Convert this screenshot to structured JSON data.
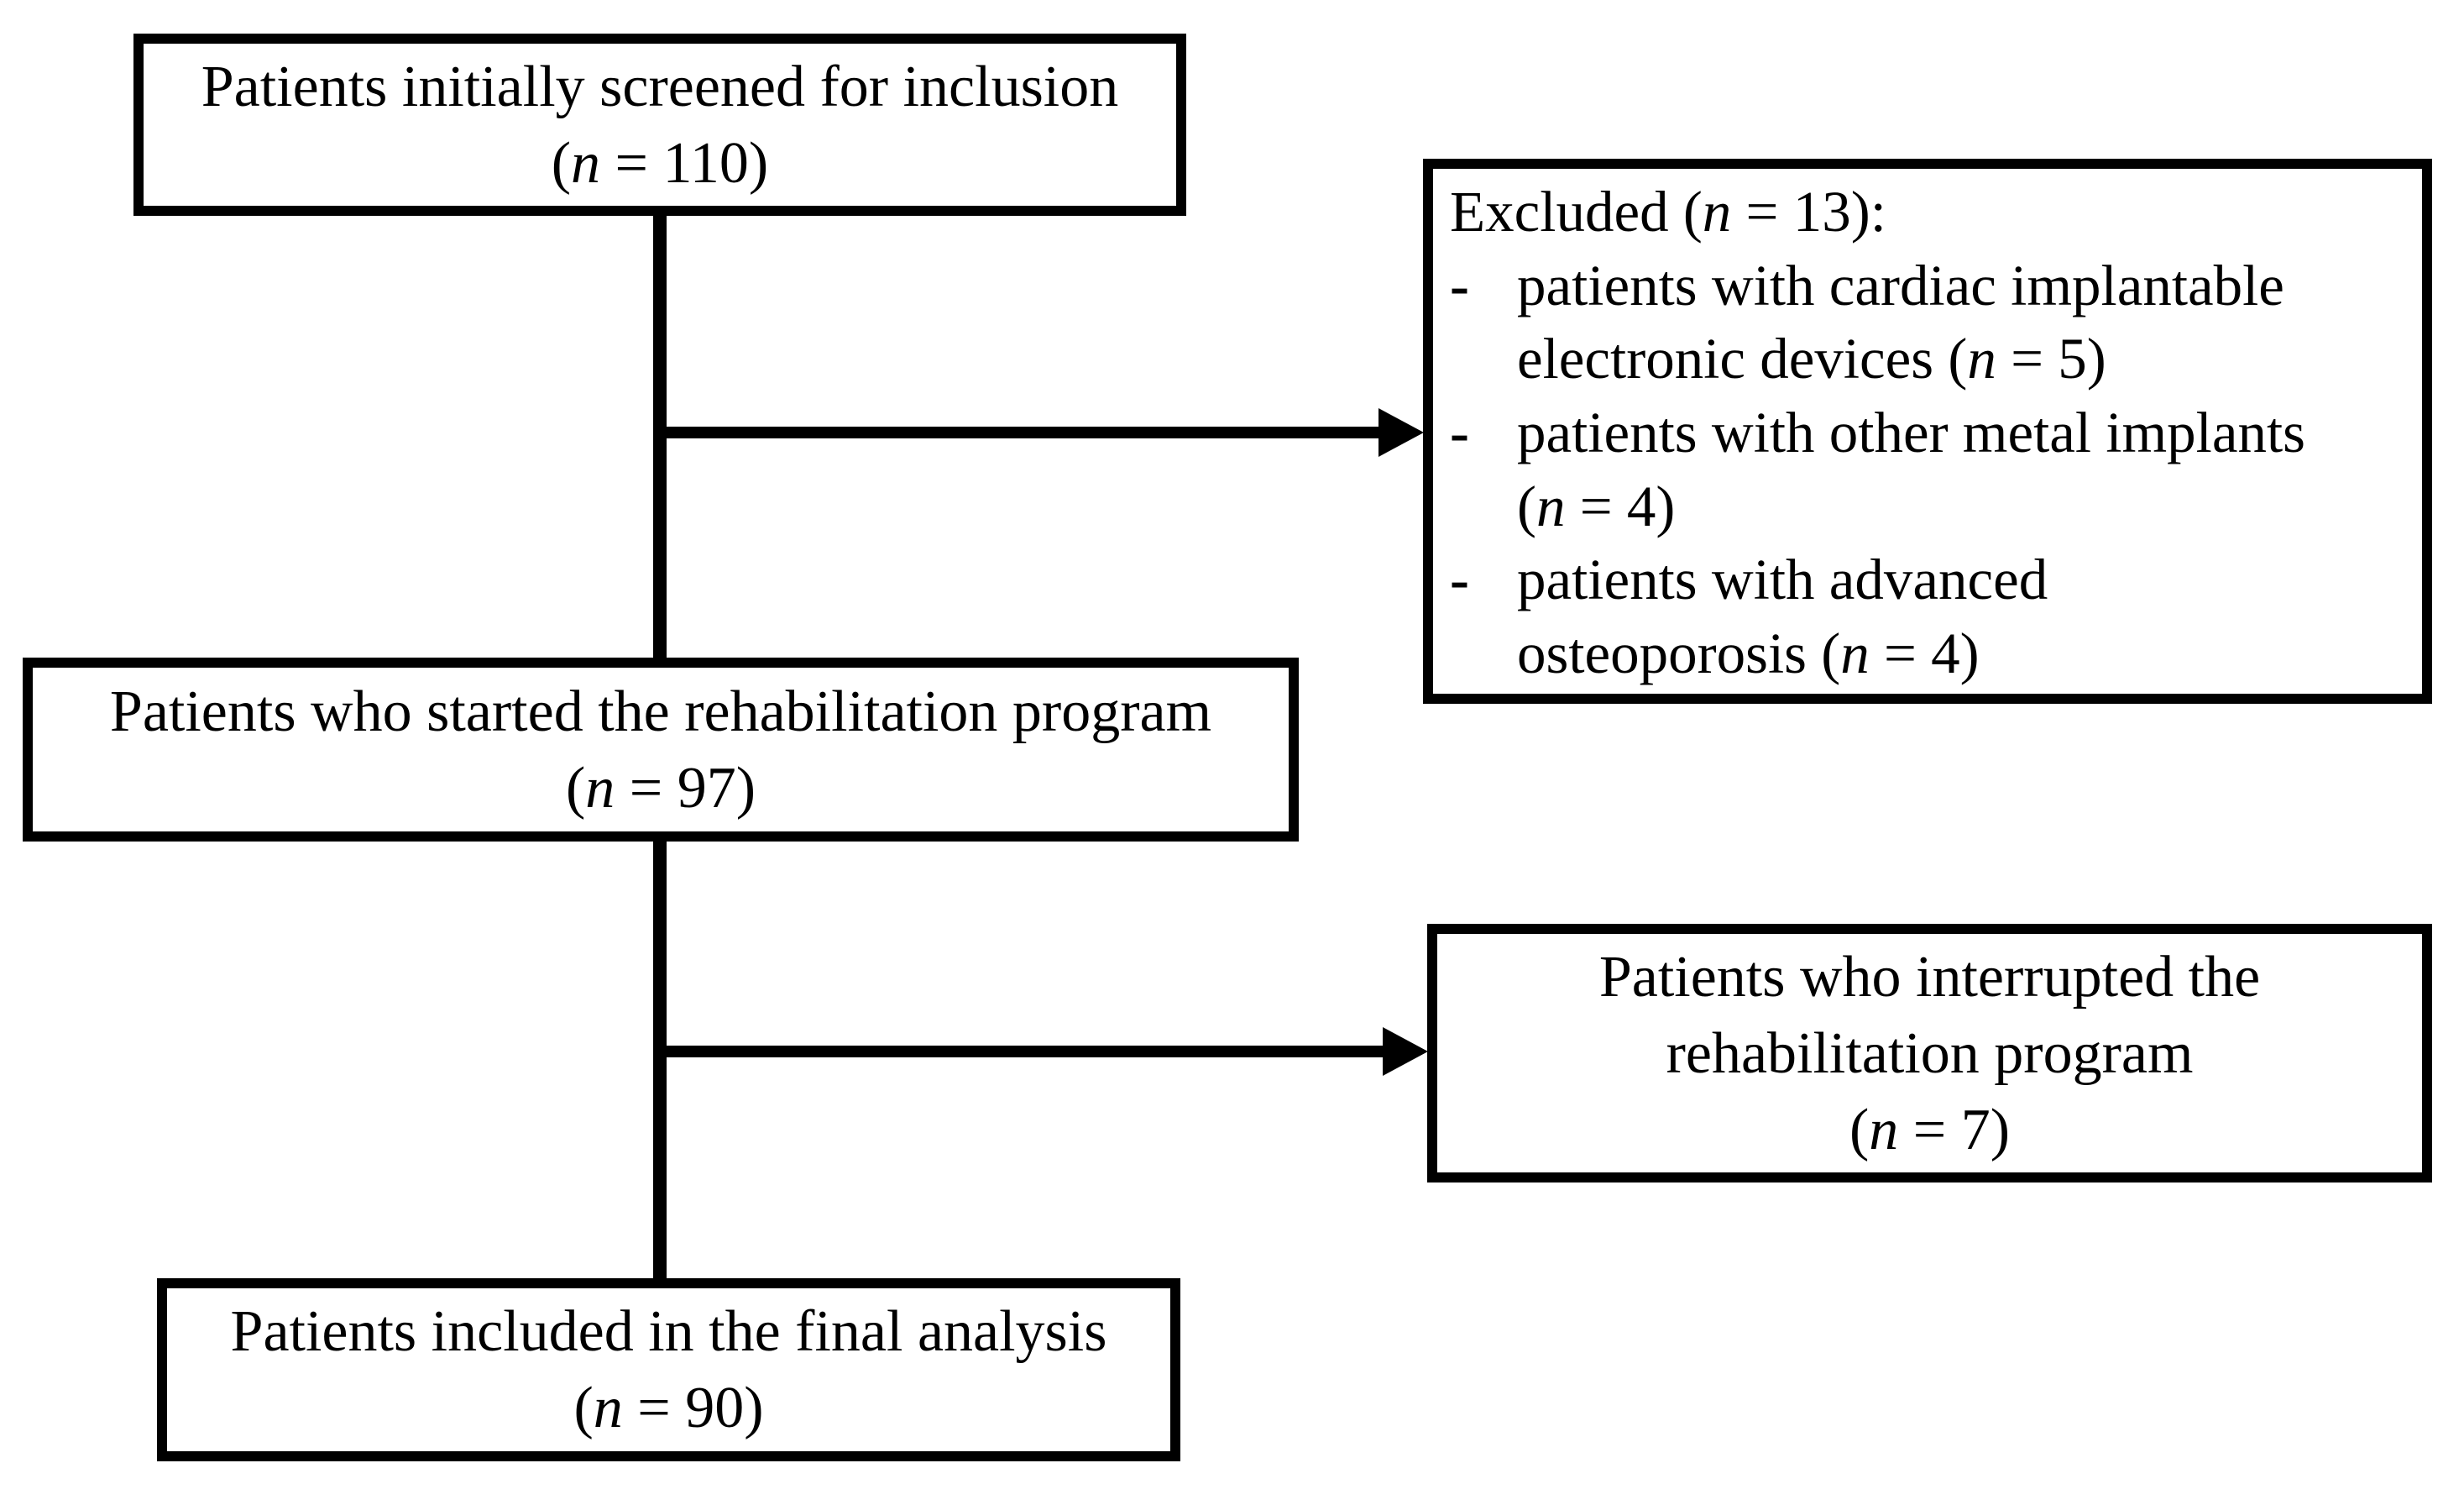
{
  "figure": {
    "background": "#ffffff",
    "ink": "#000000",
    "boxes": {
      "screened": {
        "label": "Patients initially screened for inclusion",
        "count": "(n = 110)"
      },
      "excluded": {
        "header": "Excluded (n = 13):",
        "items": [
          {
            "bullet": "-",
            "text": "patients with cardiac implantable\nelectronic devices (n = 5)"
          },
          {
            "bullet": "-",
            "text": "patients with other metal implants\n(n = 4)"
          },
          {
            "bullet": "-",
            "text": "patients with advanced\nosteoporosis (n = 4)"
          }
        ]
      },
      "started": {
        "label": "Patients who started the rehabilitation program",
        "count": "(n = 97)"
      },
      "interrupted": {
        "label": "Patients who interrupted the\nrehabilitation program",
        "count": "(n = 7)"
      },
      "final": {
        "label": "Patients included in the final analysis",
        "count": "(n = 90)"
      }
    }
  }
}
